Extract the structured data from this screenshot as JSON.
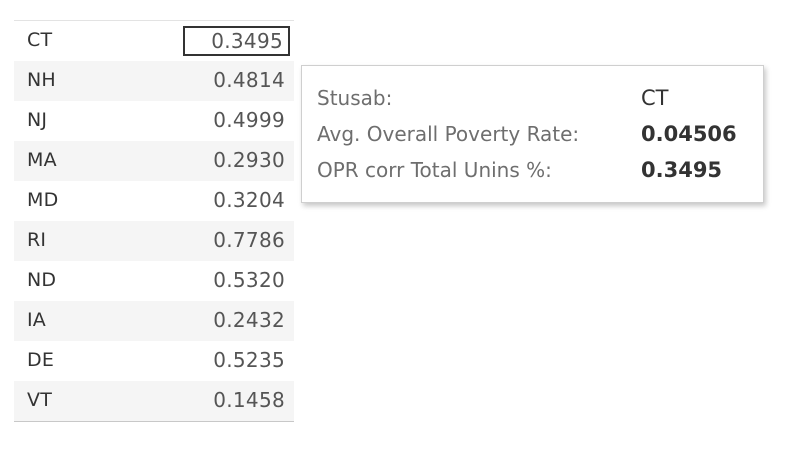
{
  "table": {
    "rows": [
      {
        "state": "CT",
        "value": "0.3495"
      },
      {
        "state": "NH",
        "value": "0.4814"
      },
      {
        "state": "NJ",
        "value": "0.4999"
      },
      {
        "state": "MA",
        "value": "0.2930"
      },
      {
        "state": "MD",
        "value": "0.3204"
      },
      {
        "state": "RI",
        "value": "0.7786"
      },
      {
        "state": "ND",
        "value": "0.5320"
      },
      {
        "state": "IA",
        "value": "0.2432"
      },
      {
        "state": "DE",
        "value": "0.5235"
      },
      {
        "state": "VT",
        "value": "0.1458"
      }
    ],
    "selected_state": "CT"
  },
  "tooltip": {
    "stusab_label": "Stusab:",
    "stusab_value": "CT",
    "poverty_label": "Avg. Overall Poverty Rate:",
    "poverty_value": "0.04506",
    "corr_label": "OPR corr Total Unins %:",
    "corr_value": "0.3495"
  }
}
